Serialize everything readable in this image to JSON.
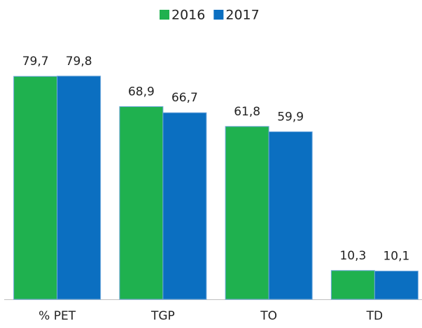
{
  "chart_data": {
    "type": "bar",
    "categories": [
      "% PET",
      "TGP",
      "TO",
      "TD"
    ],
    "series": [
      {
        "name": "2016",
        "color": "#1fb14f",
        "values": [
          79.7,
          68.9,
          61.8,
          10.3
        ],
        "value_labels": [
          "79,7",
          "68,9",
          "61,8",
          "10,3"
        ]
      },
      {
        "name": "2017",
        "color": "#0b6fc1",
        "values": [
          79.8,
          66.7,
          59.9,
          10.1
        ],
        "value_labels": [
          "79,8",
          "66,7",
          "59,9",
          "10,1"
        ]
      }
    ],
    "ylim": [
      0,
      80
    ],
    "legend": "top"
  }
}
